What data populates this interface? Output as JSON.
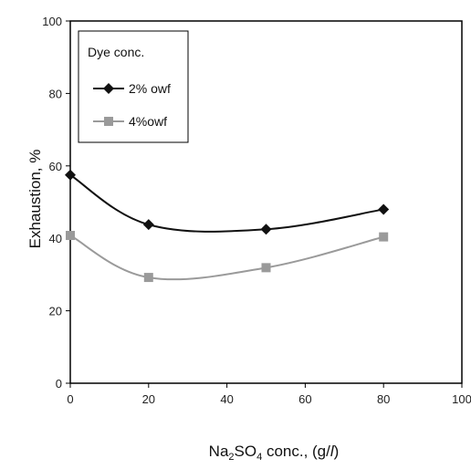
{
  "chart_data": {
    "type": "line",
    "xlabel": {
      "prefix": "Na",
      "sub1": "2",
      "mid": "SO",
      "sub2": "4",
      "suffix": " conc., (g/",
      "italic": "l",
      "end": ")"
    },
    "ylabel": "Exhaustion, %",
    "xlim": [
      0,
      100
    ],
    "ylim": [
      0,
      100
    ],
    "xticks": [
      "0",
      "20",
      "40",
      "60",
      "80",
      "100"
    ],
    "yticks": [
      "0",
      "20",
      "40",
      "60",
      "80",
      "100"
    ],
    "grid": false,
    "legend": {
      "title": "Dye conc.",
      "placement": "top-left"
    },
    "x": [
      0,
      20,
      50,
      80
    ],
    "series": [
      {
        "name": "2% owf",
        "values": [
          57.5,
          43.8,
          42.5,
          48.0
        ],
        "color": "#111111",
        "marker": "diamond"
      },
      {
        "name": "4%owf",
        "values": [
          40.8,
          29.2,
          31.9,
          40.4
        ],
        "color": "#9a9a9a",
        "marker": "square"
      }
    ]
  }
}
